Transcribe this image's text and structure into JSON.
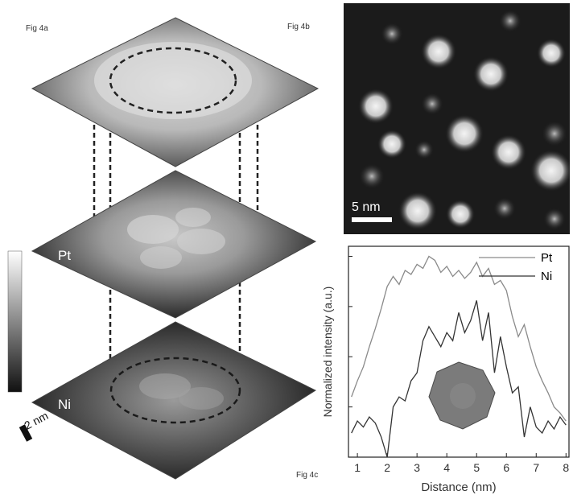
{
  "figure": {
    "label_a": "Fig 4a",
    "label_b": "Fig 4b",
    "label_c": "Fig 4c"
  },
  "panel_a": {
    "pt_label": "Pt",
    "ni_label": "Ni",
    "scale_label": "2 nm"
  },
  "panel_b": {
    "scale_label": "5 nm"
  },
  "chart_data": {
    "type": "line",
    "xlabel": "Distance (nm)",
    "ylabel": "Normalized intensity (a.u.)",
    "xlim": [
      0.7,
      8.1
    ],
    "ylim": [
      0,
      1.05
    ],
    "x_ticks": [
      1,
      2,
      3,
      4,
      5,
      6,
      7,
      8
    ],
    "legend_position": "top-right",
    "series": [
      {
        "name": "Pt",
        "color": "#8a8a8a",
        "x": [
          0.8,
          1.0,
          1.2,
          1.4,
          1.6,
          1.8,
          2.0,
          2.2,
          2.4,
          2.6,
          2.8,
          3.0,
          3.2,
          3.4,
          3.6,
          3.8,
          4.0,
          4.2,
          4.4,
          4.6,
          4.8,
          5.0,
          5.2,
          5.4,
          5.6,
          5.8,
          6.0,
          6.2,
          6.4,
          6.6,
          6.8,
          7.0,
          7.2,
          7.4,
          7.6,
          7.8,
          8.0
        ],
        "y": [
          0.3,
          0.38,
          0.45,
          0.55,
          0.64,
          0.74,
          0.85,
          0.9,
          0.86,
          0.93,
          0.91,
          0.96,
          0.94,
          1.0,
          0.98,
          0.92,
          0.95,
          0.9,
          0.93,
          0.89,
          0.92,
          0.97,
          0.9,
          0.94,
          0.86,
          0.88,
          0.83,
          0.7,
          0.6,
          0.66,
          0.55,
          0.45,
          0.38,
          0.32,
          0.25,
          0.22,
          0.18
        ]
      },
      {
        "name": "Ni",
        "color": "#333333",
        "x": [
          0.8,
          1.0,
          1.2,
          1.4,
          1.6,
          1.8,
          2.0,
          2.2,
          2.4,
          2.6,
          2.8,
          3.0,
          3.2,
          3.4,
          3.6,
          3.8,
          4.0,
          4.2,
          4.4,
          4.6,
          4.8,
          5.0,
          5.2,
          5.4,
          5.6,
          5.8,
          6.0,
          6.2,
          6.4,
          6.6,
          6.8,
          7.0,
          7.2,
          7.4,
          7.6,
          7.8,
          8.0
        ],
        "y": [
          0.12,
          0.18,
          0.15,
          0.2,
          0.17,
          0.1,
          0.0,
          0.25,
          0.3,
          0.28,
          0.38,
          0.42,
          0.58,
          0.65,
          0.6,
          0.55,
          0.62,
          0.58,
          0.72,
          0.62,
          0.68,
          0.78,
          0.58,
          0.72,
          0.42,
          0.6,
          0.45,
          0.32,
          0.35,
          0.1,
          0.25,
          0.15,
          0.12,
          0.18,
          0.14,
          0.2,
          0.16
        ]
      }
    ]
  }
}
